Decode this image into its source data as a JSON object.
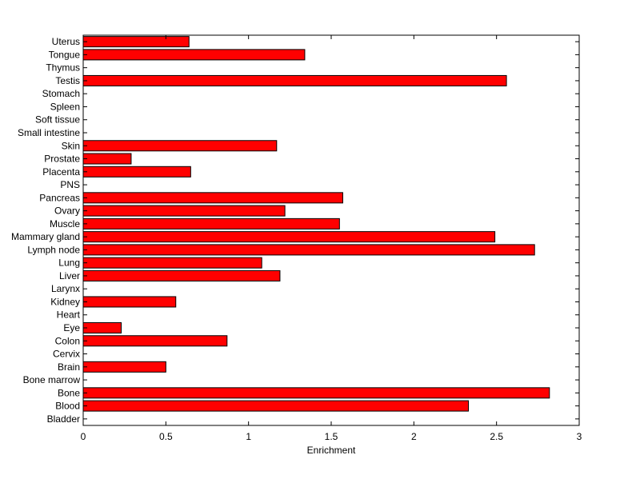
{
  "chart_data": {
    "type": "bar",
    "orientation": "horizontal",
    "title": "",
    "xlabel": "Enrichment",
    "ylabel": "",
    "xlim": [
      0,
      3
    ],
    "xticks": [
      "0",
      "0.5",
      "1",
      "1.5",
      "2",
      "2.5",
      "3"
    ],
    "grid": false,
    "bar_color": "#ff0000",
    "bar_edge_color": "#000000",
    "categories": [
      "Bladder",
      "Blood",
      "Bone",
      "Bone marrow",
      "Brain",
      "Cervix",
      "Colon",
      "Eye",
      "Heart",
      "Kidney",
      "Larynx",
      "Liver",
      "Lung",
      "Lymph node",
      "Mammary gland",
      "Muscle",
      "Ovary",
      "Pancreas",
      "PNS",
      "Placenta",
      "Prostate",
      "Skin",
      "Small intestine",
      "Soft tissue",
      "Spleen",
      "Stomach",
      "Testis",
      "Thymus",
      "Tongue",
      "Uterus"
    ],
    "values": [
      0,
      2.33,
      2.82,
      0,
      0.5,
      0,
      0.87,
      0.23,
      0,
      0.56,
      0,
      1.19,
      1.08,
      2.73,
      2.49,
      1.55,
      1.22,
      1.57,
      0,
      0.65,
      0.29,
      1.17,
      0,
      0,
      0,
      0,
      2.56,
      0,
      1.34,
      0.64
    ]
  }
}
